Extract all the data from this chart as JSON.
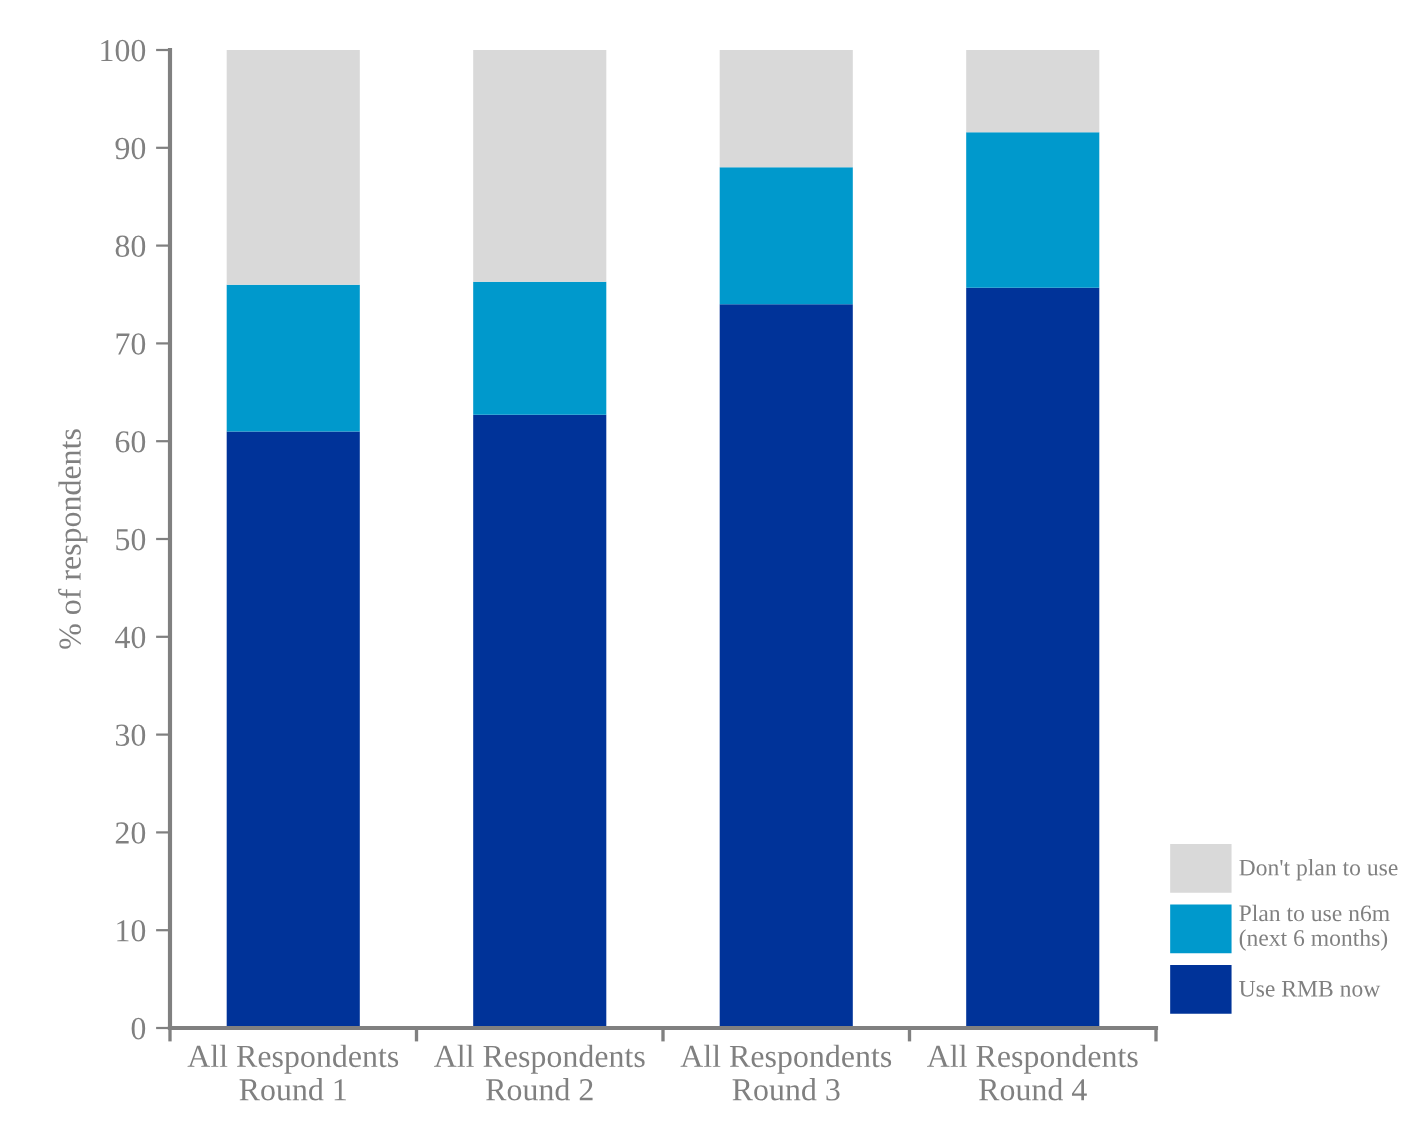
{
  "chart_data": {
    "type": "bar",
    "stacked": true,
    "ylabel": "% of respondents",
    "categories": [
      "All Respondents\nRound 1",
      "All Respondents\nRound 2",
      "All Respondents\nRound 3",
      "All Respondents\nRound 4"
    ],
    "series": [
      {
        "name": "Use RMB now",
        "color": "#003399",
        "values": [
          61,
          62.7,
          74,
          75.7
        ]
      },
      {
        "name": "Plan to use n6m\n(next 6 months)",
        "color": "#0099cc",
        "values": [
          15,
          13.6,
          14,
          15.9
        ]
      },
      {
        "name": "Don't plan to use",
        "color": "#d9d9d9",
        "values": [
          24,
          23.7,
          12,
          8.4
        ]
      }
    ],
    "ylim": [
      0,
      100
    ],
    "yticks": [
      0,
      10,
      20,
      30,
      40,
      50,
      60,
      70,
      80,
      90,
      100
    ],
    "grid": false,
    "legend": "bottom right"
  }
}
